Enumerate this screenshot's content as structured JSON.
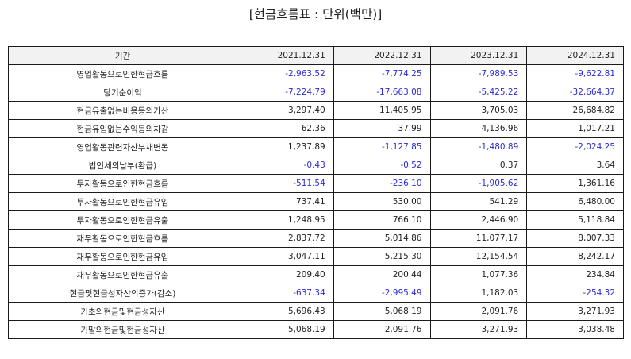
{
  "title": "[현금흐름표 : 단위(백만)]",
  "colors": {
    "negative": "#2b2bd6",
    "text": "#222222",
    "header_bg": "#f2f2f2"
  },
  "header": [
    "기간",
    "2021.12.31",
    "2022.12.31",
    "2023.12.31",
    "2024.12.31"
  ],
  "rows": [
    {
      "label": "영업활동으로인한현금흐름",
      "values": [
        "-2,963.52",
        "-7,774.25",
        "-7,989.53",
        "-9,622.81"
      ]
    },
    {
      "label": "당기순이익",
      "values": [
        "-7,224.79",
        "-17,663.08",
        "-5,425.22",
        "-32,664.37"
      ]
    },
    {
      "label": "현금유출없는비용등의가산",
      "values": [
        "3,297.40",
        "11,405.95",
        "3,705.03",
        "26,684.82"
      ]
    },
    {
      "label": "현금유입없는수익등의차감",
      "values": [
        "62.36",
        "37.99",
        "4,136.96",
        "1,017.21"
      ]
    },
    {
      "label": "영업활동관련자산부채변동",
      "values": [
        "1,237.89",
        "-1,127.85",
        "-1,480.89",
        "-2,024.25"
      ]
    },
    {
      "label": "법인세의납부(환급)",
      "values": [
        "-0.43",
        "-0.52",
        "0.37",
        "3.64"
      ]
    },
    {
      "label": "투자활동으로인한현금흐름",
      "values": [
        "-511.54",
        "-236.10",
        "-1,905.62",
        "1,361.16"
      ]
    },
    {
      "label": "투자활동으로인한현금유입",
      "values": [
        "737.41",
        "530.00",
        "541.29",
        "6,480.00"
      ]
    },
    {
      "label": "투자활동으로인한현금유출",
      "values": [
        "1,248.95",
        "766.10",
        "2,446.90",
        "5,118.84"
      ]
    },
    {
      "label": "재무활동으로인한현금흐름",
      "values": [
        "2,837.72",
        "5,014.86",
        "11,077.17",
        "8,007.33"
      ]
    },
    {
      "label": "재무활동으로인한현금유입",
      "values": [
        "3,047.11",
        "5,215.30",
        "12,154.54",
        "8,242.17"
      ]
    },
    {
      "label": "재무활동으로인한현금유출",
      "values": [
        "209.40",
        "200.44",
        "1,077.36",
        "234.84"
      ]
    },
    {
      "label": "현금및현금성자산의증가(감소)",
      "values": [
        "-637.34",
        "-2,995.49",
        "1,182.03",
        "-254.32"
      ]
    },
    {
      "label": "기초의현금및현금성자산",
      "values": [
        "5,696.43",
        "5,068.19",
        "2,091.76",
        "3,271.93"
      ]
    },
    {
      "label": "기말의현금및현금성자산",
      "values": [
        "5,068.19",
        "2,091.76",
        "3,271.93",
        "3,038.48"
      ]
    }
  ]
}
